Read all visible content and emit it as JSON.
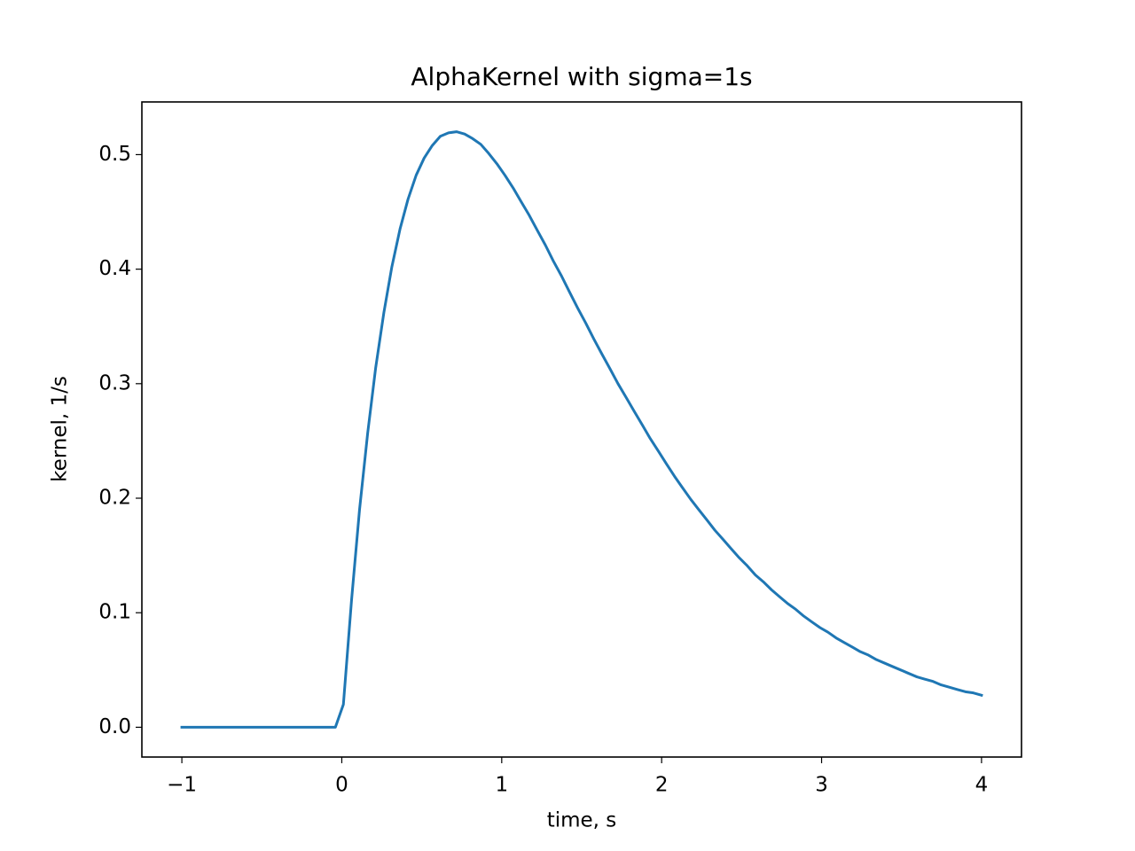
{
  "chart_data": {
    "type": "line",
    "title": "AlphaKernel with sigma=1s",
    "xlabel": "time, s",
    "ylabel": "kernel, 1/s",
    "x": [
      -1,
      -0.949,
      -0.899,
      -0.848,
      -0.798,
      -0.747,
      -0.697,
      -0.646,
      -0.596,
      -0.545,
      -0.495,
      -0.444,
      -0.394,
      -0.343,
      -0.293,
      -0.242,
      -0.192,
      -0.141,
      -0.091,
      -0.04,
      0.01,
      0.061,
      0.111,
      0.162,
      0.212,
      0.263,
      0.313,
      0.364,
      0.414,
      0.465,
      0.515,
      0.566,
      0.616,
      0.667,
      0.717,
      0.768,
      0.818,
      0.869,
      0.919,
      0.97,
      1.02,
      1.071,
      1.121,
      1.172,
      1.222,
      1.273,
      1.323,
      1.374,
      1.424,
      1.475,
      1.525,
      1.576,
      1.626,
      1.677,
      1.727,
      1.778,
      1.828,
      1.879,
      1.929,
      1.98,
      2.03,
      2.081,
      2.131,
      2.182,
      2.232,
      2.283,
      2.333,
      2.384,
      2.434,
      2.485,
      2.535,
      2.586,
      2.636,
      2.687,
      2.737,
      2.788,
      2.838,
      2.889,
      2.939,
      2.99,
      3.04,
      3.091,
      3.141,
      3.192,
      3.242,
      3.293,
      3.343,
      3.394,
      3.444,
      3.495,
      3.545,
      3.596,
      3.646,
      3.697,
      3.747,
      3.798,
      3.848,
      3.899,
      3.949,
      4
    ],
    "series": [
      {
        "color": "#1f77b4",
        "values": [
          0,
          0,
          0,
          0,
          0,
          0,
          0,
          0,
          0,
          0,
          0,
          0,
          0,
          0,
          0,
          0,
          0,
          0,
          0,
          0,
          0.02,
          0.111,
          0.19,
          0.257,
          0.314,
          0.362,
          0.402,
          0.435,
          0.461,
          0.482,
          0.497,
          0.508,
          0.516,
          0.519,
          0.52,
          0.518,
          0.514,
          0.509,
          0.501,
          0.492,
          0.482,
          0.471,
          0.459,
          0.447,
          0.434,
          0.421,
          0.407,
          0.394,
          0.38,
          0.366,
          0.353,
          0.339,
          0.326,
          0.313,
          0.3,
          0.288,
          0.276,
          0.264,
          0.252,
          0.241,
          0.23,
          0.219,
          0.209,
          0.199,
          0.19,
          0.181,
          0.172,
          0.164,
          0.156,
          0.148,
          0.141,
          0.133,
          0.127,
          0.12,
          0.114,
          0.108,
          0.103,
          0.097,
          0.092,
          0.087,
          0.083,
          0.078,
          0.074,
          0.07,
          0.066,
          0.063,
          0.059,
          0.056,
          0.053,
          0.05,
          0.047,
          0.044,
          0.042,
          0.04,
          0.037,
          0.035,
          0.033,
          0.031,
          0.03,
          0.028
        ]
      }
    ],
    "xlim": [
      -1.25,
      4.25
    ],
    "ylim": [
      -0.026,
      0.546
    ],
    "xticks": [
      {
        "value": -1,
        "label": "−1"
      },
      0,
      1,
      2,
      3,
      4
    ],
    "yticks": [
      {
        "value": 0,
        "label": "0.0"
      },
      0.1,
      0.2,
      0.3,
      0.4,
      0.5
    ]
  }
}
